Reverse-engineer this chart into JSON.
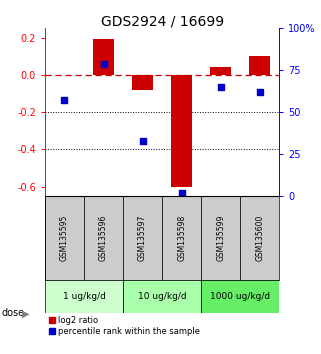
{
  "title": "GDS2924 / 16699",
  "samples": [
    "GSM135595",
    "GSM135596",
    "GSM135597",
    "GSM135598",
    "GSM135599",
    "GSM135600"
  ],
  "log2_ratio": [
    0.0,
    0.19,
    -0.08,
    -0.6,
    0.04,
    0.1
  ],
  "percentile_rank": [
    57,
    79,
    33,
    2,
    65,
    62
  ],
  "dose_groups": [
    {
      "label": "1 ug/kg/d",
      "span": [
        0,
        1
      ],
      "color": "#ccffcc"
    },
    {
      "label": "10 ug/kg/d",
      "span": [
        2,
        3
      ],
      "color": "#aaffaa"
    },
    {
      "label": "1000 ug/kg/d",
      "span": [
        4,
        5
      ],
      "color": "#66ee66"
    }
  ],
  "ylim_left": [
    -0.65,
    0.25
  ],
  "ylim_right": [
    0,
    100
  ],
  "yticks_left": [
    -0.6,
    -0.4,
    -0.2,
    0.0,
    0.2
  ],
  "yticks_right": [
    0,
    25,
    50,
    75,
    100
  ],
  "bar_color": "#cc0000",
  "dot_color": "#0000cc",
  "hline_color": "#cc0000",
  "grid_color": "#000000",
  "bg_color": "#ffffff",
  "sample_bg_color": "#cccccc",
  "title_fontsize": 10,
  "tick_fontsize": 7,
  "label_fontsize": 7
}
